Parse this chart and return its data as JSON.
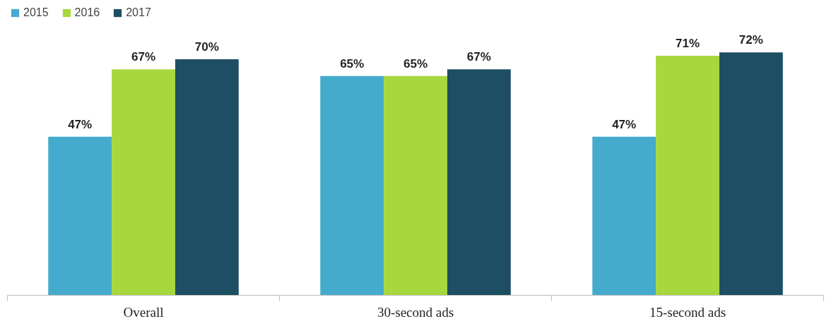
{
  "chart_data": {
    "type": "bar",
    "categories": [
      "Overall",
      "30-second ads",
      "15-second ads"
    ],
    "series": [
      {
        "name": "2015",
        "color": "#45abcd",
        "values": [
          47,
          65,
          47
        ],
        "value_labels": [
          "47%",
          "65%",
          "47%"
        ]
      },
      {
        "name": "2016",
        "color": "#a6d83d",
        "values": [
          67,
          65,
          71
        ],
        "value_labels": [
          "67%",
          "65%",
          "71%"
        ]
      },
      {
        "name": "2017",
        "color": "#1d4e63",
        "values": [
          70,
          67,
          72
        ],
        "value_labels": [
          "70%",
          "67%",
          "72%"
        ]
      }
    ],
    "legend": "top left"
  }
}
